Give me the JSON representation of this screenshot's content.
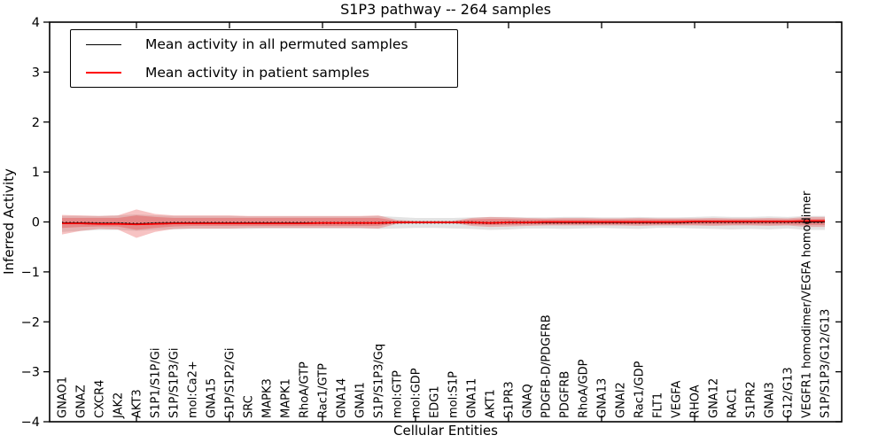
{
  "chart_data": {
    "type": "line",
    "title": "S1P3 pathway -- 264 samples",
    "xlabel": "Cellular Entities",
    "ylabel": "Inferred Activity",
    "ylim": [
      -4,
      4
    ],
    "yticks": [
      -4,
      -3,
      -2,
      -1,
      0,
      1,
      2,
      3,
      4
    ],
    "xticks_major_at": [
      5,
      10,
      15,
      20,
      25,
      30,
      35,
      40
    ],
    "grid": false,
    "legend_position": "upper left",
    "categories": [
      "GNAO1",
      "GNAZ",
      "CXCR4",
      "JAK2",
      "AKT3",
      "S1P1/S1P/Gi",
      "S1P/S1P3/Gi",
      "mol:Ca2+",
      "GNA15",
      "S1P/S1P2/Gi",
      "SRC",
      "MAPK3",
      "MAPK1",
      "RhoA/GTP",
      "Rac1/GTP",
      "GNA14",
      "GNAI1",
      "S1P/S1P3/Gq",
      "mol:GTP",
      "mol:GDP",
      "EDG1",
      "mol:S1P",
      "GNA11",
      "AKT1",
      "S1PR3",
      "GNAQ",
      "PDGFB-D/PDGFRB",
      "PDGFRB",
      "RhoA/GDP",
      "GNA13",
      "GNAI2",
      "Rac1/GDP",
      "FLT1",
      "VEGFA",
      "RHOA",
      "GNA12",
      "RAC1",
      "S1PR2",
      "GNAI3",
      "G12/G13",
      "VEGFR1 homodimer/VEGFA homodimer",
      "S1P/S1P3/G12/G13"
    ],
    "series": [
      {
        "name": "Mean activity in all permuted samples",
        "color": "#000000",
        "style": "solid-with-dense-dash-markers",
        "values": [
          -0.02,
          -0.02,
          -0.03,
          -0.03,
          -0.04,
          -0.03,
          -0.02,
          -0.02,
          -0.02,
          -0.02,
          -0.02,
          -0.02,
          -0.02,
          -0.02,
          -0.02,
          -0.02,
          -0.02,
          -0.02,
          -0.01,
          -0.01,
          -0.01,
          -0.01,
          -0.01,
          -0.02,
          -0.01,
          -0.01,
          -0.01,
          -0.01,
          -0.01,
          -0.01,
          -0.01,
          -0.01,
          -0.01,
          -0.01,
          0,
          0,
          0,
          0,
          0,
          0,
          0,
          0
        ]
      },
      {
        "name": "Mean activity in patient samples",
        "color": "#ff0000",
        "style": "solid",
        "values": [
          -0.03,
          -0.03,
          -0.04,
          -0.04,
          -0.05,
          -0.04,
          -0.03,
          -0.03,
          -0.03,
          -0.03,
          -0.03,
          -0.03,
          -0.03,
          -0.03,
          -0.02,
          -0.02,
          -0.02,
          -0.02,
          -0.01,
          -0.01,
          -0.01,
          -0.01,
          -0.01,
          -0.02,
          -0.01,
          -0.01,
          0,
          0,
          0,
          0,
          0,
          0,
          0,
          0,
          0.01,
          0.01,
          0.01,
          0.01,
          0.01,
          0.01,
          0.02,
          0.02
        ]
      }
    ],
    "bands": [
      {
        "name": "permuted-samples-range-band",
        "color": "#999999",
        "opacity": 0.28,
        "upper": [
          0.12,
          0.12,
          0.12,
          0.13,
          0.15,
          0.13,
          0.12,
          0.12,
          0.12,
          0.12,
          0.11,
          0.11,
          0.11,
          0.11,
          0.11,
          0.11,
          0.11,
          0.12,
          0.1,
          0.08,
          0.08,
          0.08,
          0.09,
          0.1,
          0.1,
          0.09,
          0.09,
          0.1,
          0.1,
          0.09,
          0.09,
          0.1,
          0.09,
          0.09,
          0.1,
          0.11,
          0.1,
          0.1,
          0.11,
          0.1,
          0.12,
          0.12
        ],
        "lower": [
          -0.2,
          -0.18,
          -0.16,
          -0.16,
          -0.18,
          -0.16,
          -0.15,
          -0.14,
          -0.14,
          -0.14,
          -0.14,
          -0.13,
          -0.13,
          -0.13,
          -0.13,
          -0.13,
          -0.13,
          -0.14,
          -0.13,
          -0.12,
          -0.12,
          -0.13,
          -0.14,
          -0.16,
          -0.15,
          -0.13,
          -0.13,
          -0.14,
          -0.13,
          -0.12,
          -0.13,
          -0.14,
          -0.12,
          -0.12,
          -0.13,
          -0.14,
          -0.15,
          -0.14,
          -0.15,
          -0.13,
          -0.16,
          -0.16
        ]
      },
      {
        "name": "patient-samples-range-band",
        "color": "#e64545",
        "opacity": 0.32,
        "upper": [
          0.14,
          0.13,
          0.12,
          0.13,
          0.25,
          0.16,
          0.13,
          0.13,
          0.13,
          0.13,
          0.12,
          0.12,
          0.12,
          0.12,
          0.12,
          0.12,
          0.12,
          0.13,
          0.04,
          0.02,
          0.02,
          0.02,
          0.08,
          0.1,
          0.09,
          0.08,
          0.07,
          0.08,
          0.08,
          0.07,
          0.07,
          0.08,
          0.07,
          0.07,
          0.07,
          0.08,
          0.07,
          0.07,
          0.08,
          0.07,
          0.1,
          0.1
        ],
        "lower": [
          -0.25,
          -0.18,
          -0.14,
          -0.15,
          -0.32,
          -0.2,
          -0.14,
          -0.13,
          -0.13,
          -0.13,
          -0.12,
          -0.12,
          -0.12,
          -0.12,
          -0.12,
          -0.12,
          -0.12,
          -0.13,
          -0.04,
          -0.02,
          -0.02,
          -0.02,
          -0.08,
          -0.1,
          -0.09,
          -0.08,
          -0.07,
          -0.07,
          -0.07,
          -0.07,
          -0.07,
          -0.08,
          -0.07,
          -0.07,
          -0.07,
          -0.08,
          -0.07,
          -0.07,
          -0.08,
          -0.07,
          -0.1,
          -0.1
        ]
      },
      {
        "name": "patient-samples-core-band",
        "color": "#e64545",
        "opacity": 0.38,
        "upper": [
          0.08,
          0.08,
          0.08,
          0.08,
          0.13,
          0.1,
          0.08,
          0.08,
          0.08,
          0.08,
          0.08,
          0.08,
          0.08,
          0.08,
          0.08,
          0.08,
          0.08,
          0.08,
          0.02,
          0.01,
          0.01,
          0.01,
          0.05,
          0.06,
          0.06,
          0.05,
          0.05,
          0.05,
          0.05,
          0.05,
          0.05,
          0.05,
          0.05,
          0.05,
          0.05,
          0.05,
          0.05,
          0.05,
          0.05,
          0.05,
          0.06,
          0.06
        ],
        "lower": [
          -0.12,
          -0.1,
          -0.09,
          -0.09,
          -0.16,
          -0.12,
          -0.09,
          -0.08,
          -0.08,
          -0.08,
          -0.08,
          -0.08,
          -0.08,
          -0.08,
          -0.08,
          -0.08,
          -0.08,
          -0.08,
          -0.02,
          -0.01,
          -0.01,
          -0.01,
          -0.05,
          -0.06,
          -0.06,
          -0.05,
          -0.05,
          -0.05,
          -0.05,
          -0.05,
          -0.05,
          -0.05,
          -0.05,
          -0.05,
          -0.05,
          -0.05,
          -0.05,
          -0.05,
          -0.05,
          -0.05,
          -0.06,
          -0.06
        ]
      }
    ]
  }
}
